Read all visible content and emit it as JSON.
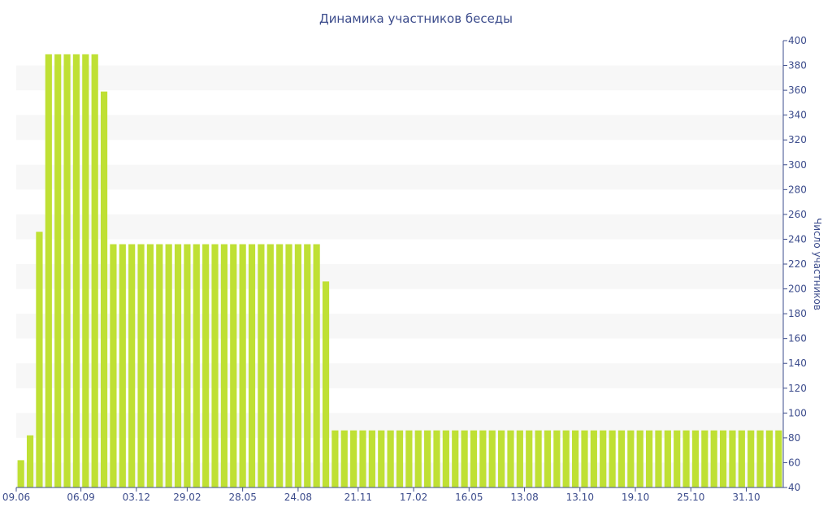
{
  "chart_data": {
    "type": "bar",
    "title": "Динамика участников беседы",
    "xlabel": "",
    "ylabel": "Число участников",
    "ylim": [
      40,
      400
    ],
    "y_axis_position": "right",
    "y_ticks": [
      40,
      60,
      80,
      100,
      120,
      140,
      160,
      180,
      200,
      220,
      240,
      260,
      280,
      300,
      320,
      340,
      360,
      380,
      400
    ],
    "grid": "horizontal alternating bands",
    "legend": "none",
    "bar_color": "#bfe034",
    "band_color": "#f7f7f7",
    "axis_color": "#3c4c8c",
    "x_tick_labels": [
      "09.06",
      "06.09",
      "03.12",
      "29.02",
      "28.05",
      "24.08",
      "21.11",
      "17.02",
      "16.05",
      "13.08",
      "13.10",
      "19.10",
      "25.10",
      "31.10"
    ],
    "x_tick_bar_index": [
      0,
      6.5,
      12.5,
      18,
      24,
      30,
      36.5,
      42.5,
      48.5,
      54.5,
      60.5,
      66.5,
      72.5,
      78.5
    ],
    "values": [
      62,
      82,
      246,
      389,
      389,
      389,
      389,
      389,
      389,
      359,
      236,
      236,
      236,
      236,
      236,
      236,
      236,
      236,
      236,
      236,
      236,
      236,
      236,
      236,
      236,
      236,
      236,
      236,
      236,
      236,
      236,
      236,
      236,
      206,
      86,
      86,
      86,
      86,
      86,
      86,
      86,
      86,
      86,
      86,
      86,
      86,
      86,
      86,
      86,
      86,
      86,
      86,
      86,
      86,
      86,
      86,
      86,
      86,
      86,
      86,
      86,
      86,
      86,
      86,
      86,
      86,
      86,
      86,
      86,
      86,
      86,
      86,
      86,
      86,
      86,
      86,
      86,
      86,
      86,
      86,
      86,
      86,
      86
    ]
  }
}
